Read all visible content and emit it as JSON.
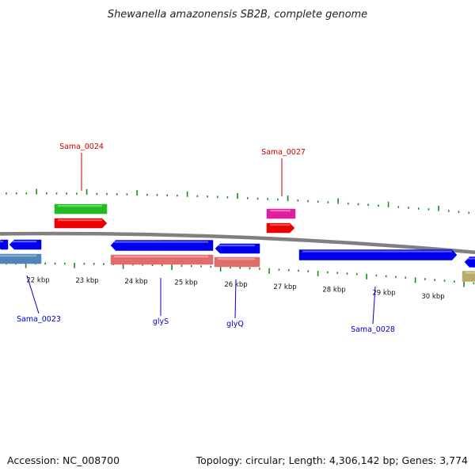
{
  "title": "Shewanella amazonensis SB2B, complete genome",
  "footer": {
    "accession": "Accession: NC_008700",
    "summary": "Topology: circular; Length: 4,306,142 bp; Genes: 3,774"
  },
  "colors": {
    "backbone": "#808080",
    "tick": "#1c8a1c",
    "scale_tick": "#1c8a1c",
    "label_red": "#cc0000",
    "label_blue": "#0000cc",
    "cds": "#0000ee",
    "rrna": "#e06c6c",
    "trna": "#4f85b8",
    "gene_green": "#22bb22",
    "gene_red": "#ee0000",
    "gene_magenta": "#e01ea0",
    "gene_khaki": "#b8ab6a"
  },
  "scale": {
    "labels": [
      "22 kbp",
      "23 kbp",
      "24 kbp",
      "25 kbp",
      "26 kbp",
      "27 kbp",
      "28 kbp",
      "29 kbp",
      "30 kbp"
    ]
  },
  "features": [
    {
      "kind": "cds",
      "strand": "-",
      "color": "cds"
    },
    {
      "kind": "cds",
      "strand": "-",
      "color": "cds"
    },
    {
      "kind": "trna",
      "strand": "-",
      "color": "trna"
    },
    {
      "kind": "gene",
      "strand": "+",
      "color": "gene_green"
    },
    {
      "kind": "gene",
      "strand": "+",
      "color": "gene_red"
    },
    {
      "kind": "cds",
      "strand": "-",
      "color": "cds",
      "name": "glyS"
    },
    {
      "kind": "rrna",
      "strand": "-",
      "color": "rrna"
    },
    {
      "kind": "cds",
      "strand": "-",
      "color": "cds",
      "name": "glyQ"
    },
    {
      "kind": "rrna",
      "strand": "-",
      "color": "rrna"
    },
    {
      "kind": "gene",
      "strand": "+",
      "color": "gene_magenta"
    },
    {
      "kind": "gene",
      "strand": "+",
      "color": "gene_red"
    },
    {
      "kind": "cds",
      "strand": "+",
      "color": "cds"
    },
    {
      "kind": "cds",
      "strand": "-",
      "color": "cds"
    },
    {
      "kind": "gene",
      "strand": "-",
      "color": "gene_khaki"
    }
  ],
  "labels": [
    {
      "text": "Sama_0024",
      "color": "label_red"
    },
    {
      "text": "Sama_0027",
      "color": "label_red"
    },
    {
      "text": "Sama_0023",
      "color": "label_blue"
    },
    {
      "text": "glyS",
      "color": "label_blue"
    },
    {
      "text": "glyQ",
      "color": "label_blue"
    },
    {
      "text": "Sama_0028",
      "color": "label_blue"
    }
  ]
}
